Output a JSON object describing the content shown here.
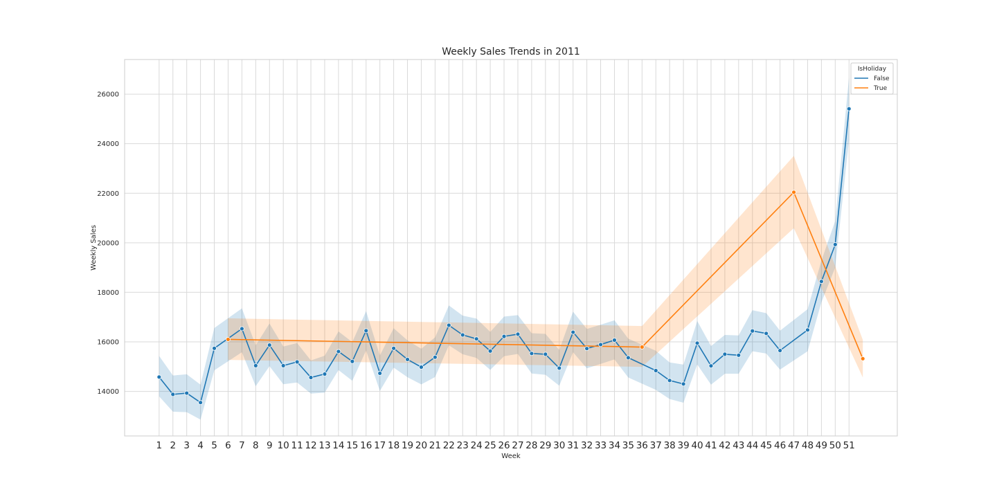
{
  "chart_data": {
    "type": "line",
    "title": "Weekly Sales Trends in 2011",
    "xlabel": "Week",
    "ylabel": "Weekly Sales",
    "x_ticks": [
      1,
      2,
      3,
      4,
      5,
      6,
      7,
      8,
      9,
      10,
      11,
      12,
      13,
      14,
      15,
      16,
      17,
      18,
      19,
      20,
      21,
      22,
      23,
      24,
      25,
      26,
      27,
      28,
      29,
      30,
      31,
      32,
      33,
      34,
      35,
      36,
      37,
      38,
      39,
      40,
      41,
      42,
      43,
      44,
      45,
      46,
      47,
      48,
      49,
      50,
      51
    ],
    "xlim": [
      -1.5,
      54.5
    ],
    "y_ticks": [
      14000,
      16000,
      18000,
      20000,
      22000,
      24000,
      26000
    ],
    "ylim": [
      12200,
      27400
    ],
    "grid": true,
    "legend": {
      "title": "IsHoliday",
      "placement": "top-right"
    },
    "series": [
      {
        "name": "False",
        "color": "#1f77b4",
        "band_color": "#1f77b4",
        "x": [
          1,
          2,
          3,
          4,
          5,
          7,
          8,
          9,
          10,
          11,
          12,
          13,
          14,
          15,
          16,
          17,
          18,
          19,
          20,
          21,
          22,
          23,
          24,
          25,
          26,
          27,
          28,
          29,
          30,
          31,
          32,
          33,
          34,
          35,
          37,
          38,
          39,
          40,
          41,
          42,
          43,
          44,
          45,
          46,
          48,
          49,
          50,
          51
        ],
        "values": [
          14580,
          13880,
          13930,
          13550,
          15740,
          16530,
          15040,
          15870,
          15040,
          15190,
          14560,
          14700,
          15610,
          15210,
          16450,
          14730,
          15740,
          15290,
          14980,
          15380,
          16670,
          16280,
          16120,
          15630,
          16220,
          16310,
          15530,
          15500,
          14940,
          16390,
          15730,
          15890,
          16070,
          15360,
          14840,
          14440,
          14300,
          15950,
          15030,
          15500,
          15460,
          16440,
          16340,
          15650,
          16480,
          18440,
          19930,
          25410
        ],
        "ci_low": [
          13800,
          13180,
          13160,
          12860,
          14850,
          15580,
          14210,
          15020,
          14290,
          14360,
          13910,
          13950,
          14860,
          14430,
          15650,
          14020,
          14960,
          14570,
          14280,
          14580,
          15860,
          15500,
          15350,
          14870,
          15420,
          15510,
          14720,
          14670,
          14230,
          15580,
          14930,
          15110,
          15290,
          14560,
          14060,
          13690,
          13540,
          15090,
          14270,
          14710,
          14710,
          15620,
          15530,
          14880,
          15620,
          17600,
          19000,
          24150
        ],
        "ci_high": [
          15430,
          14640,
          14690,
          14270,
          16560,
          17350,
          15860,
          16740,
          15810,
          15950,
          15250,
          15440,
          16420,
          15990,
          17240,
          15450,
          16550,
          16060,
          15720,
          16180,
          17470,
          17060,
          16940,
          16400,
          17020,
          17080,
          16350,
          16320,
          15670,
          17220,
          16520,
          16690,
          16870,
          16130,
          15640,
          15170,
          15080,
          16840,
          15830,
          16280,
          16260,
          17280,
          17160,
          16450,
          17320,
          19280,
          20880,
          26680
        ]
      },
      {
        "name": "True",
        "color": "#ff7f0e",
        "band_color": "#ff7f0e",
        "x": [
          6,
          36,
          47,
          52
        ],
        "values": [
          16100,
          15790,
          22040,
          15320
        ],
        "ci_low": [
          15270,
          14990,
          20590,
          14560
        ],
        "ci_high": [
          16950,
          16640,
          23510,
          16080
        ]
      }
    ]
  }
}
